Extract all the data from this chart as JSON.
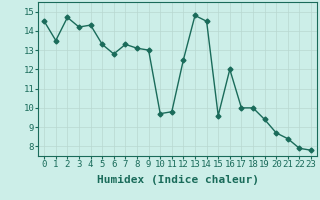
{
  "x": [
    0,
    1,
    2,
    3,
    4,
    5,
    6,
    7,
    8,
    9,
    10,
    11,
    12,
    13,
    14,
    15,
    16,
    17,
    18,
    19,
    20,
    21,
    22,
    23
  ],
  "y": [
    14.5,
    13.5,
    14.7,
    14.2,
    14.3,
    13.3,
    12.8,
    13.3,
    13.1,
    13.0,
    9.7,
    9.8,
    12.5,
    14.8,
    14.5,
    9.6,
    12.0,
    10.0,
    10.0,
    9.4,
    8.7,
    8.4,
    7.9,
    7.8
  ],
  "line_color": "#1a6b5a",
  "marker": "D",
  "markersize": 2.5,
  "linewidth": 1.0,
  "xlabel": "Humidex (Indice chaleur)",
  "xlim": [
    -0.5,
    23.5
  ],
  "ylim": [
    7.5,
    15.5
  ],
  "yticks": [
    8,
    9,
    10,
    11,
    12,
    13,
    14,
    15
  ],
  "xticks": [
    0,
    1,
    2,
    3,
    4,
    5,
    6,
    7,
    8,
    9,
    10,
    11,
    12,
    13,
    14,
    15,
    16,
    17,
    18,
    19,
    20,
    21,
    22,
    23
  ],
  "bg_color": "#cceee8",
  "grid_color": "#b8d8d0",
  "tick_fontsize": 6.5,
  "xlabel_fontsize": 8
}
